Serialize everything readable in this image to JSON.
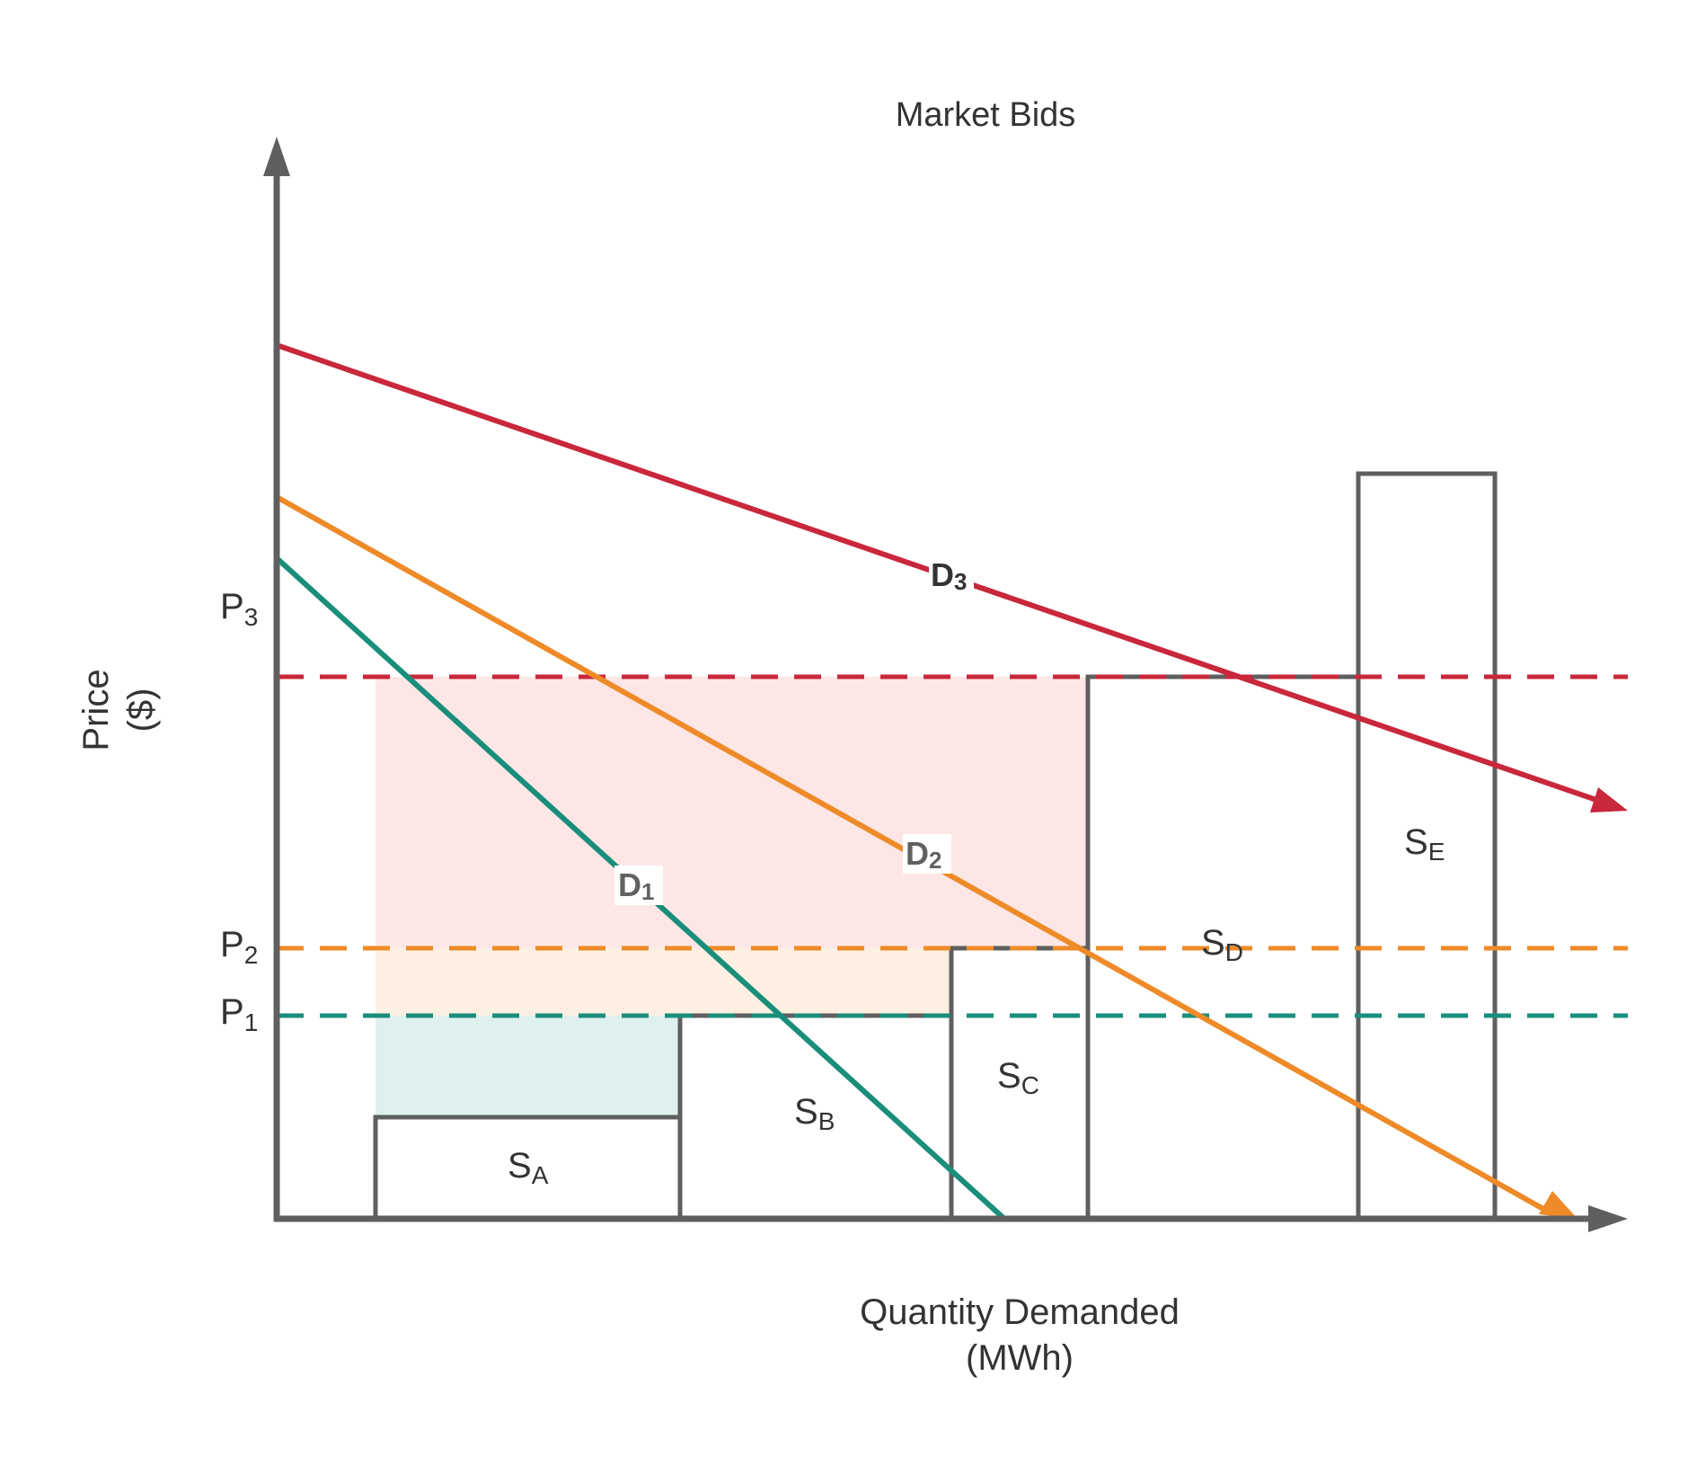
{
  "title": "Market Bids",
  "axes": {
    "y_label_line1": "Price",
    "y_label_line2": "($)",
    "x_label_line1": "Quantity Demanded",
    "x_label_line2": "(MWh)"
  },
  "price_levels": [
    {
      "id": "p1",
      "base": "P",
      "sub": "1",
      "color": "#1a8e7b"
    },
    {
      "id": "p2",
      "base": "P",
      "sub": "2",
      "color": "#ee8a28"
    },
    {
      "id": "p3",
      "base": "P",
      "sub": "3",
      "color": "#c9273b"
    }
  ],
  "supply_blocks": [
    {
      "id": "sa",
      "base": "S",
      "sub": "A"
    },
    {
      "id": "sb",
      "base": "S",
      "sub": "B"
    },
    {
      "id": "sc",
      "base": "S",
      "sub": "C"
    },
    {
      "id": "sd",
      "base": "S",
      "sub": "D"
    },
    {
      "id": "se",
      "base": "S",
      "sub": "E"
    }
  ],
  "demand_curves": [
    {
      "id": "d1",
      "base": "D",
      "sub": "1",
      "color": "#1a8e7b"
    },
    {
      "id": "d2",
      "base": "D",
      "sub": "2",
      "color": "#ee8a28"
    },
    {
      "id": "d3",
      "base": "D",
      "sub": "3",
      "color": "#c9273b"
    }
  ],
  "colors": {
    "axis": "#5f5f5f",
    "block_outline": "#5f5f5f",
    "fill_teal": "#dff1ee",
    "fill_orange": "#fdf0e2",
    "fill_pink": "#fde7e6"
  }
}
